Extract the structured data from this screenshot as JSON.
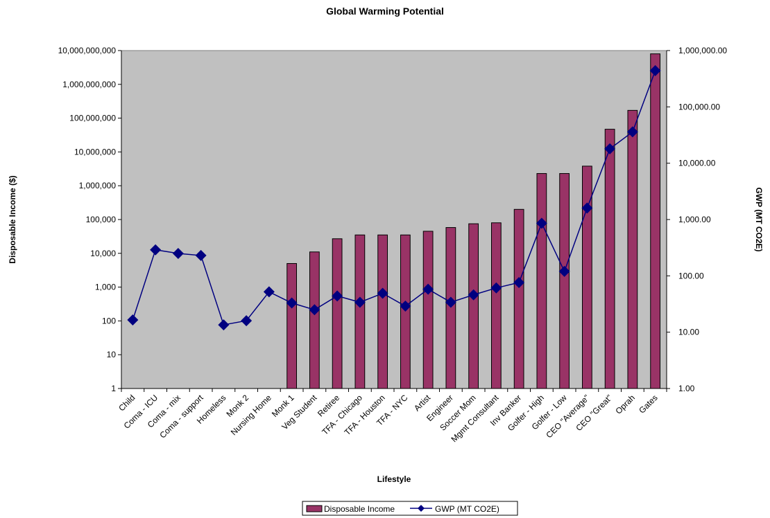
{
  "chart_data": {
    "type": "bar",
    "title": "Global Warming Potential",
    "xlabel": "Lifestyle",
    "ylabel": "Disposable Income ($)",
    "y2label": "GWP (MT CO2E)",
    "y_scale": "log",
    "y2_scale": "log",
    "ylim": [
      1,
      10000000000
    ],
    "y2lim": [
      1,
      1000000
    ],
    "y_ticks": [
      "1",
      "10",
      "100",
      "1,000",
      "10,000",
      "100,000",
      "1,000,000",
      "10,000,000",
      "100,000,000",
      "1,000,000,000",
      "10,000,000,000"
    ],
    "y2_ticks": [
      "1.00",
      "10.00",
      "100.00",
      "1,000.00",
      "10,000.00",
      "100,000.00",
      "1,000,000.00"
    ],
    "plot_background": "#c0c0c0",
    "categories": [
      "Child",
      "Coma - ICU",
      "Coma - mix",
      "Coma - support",
      "Homeless",
      "Monk 2",
      "Nursing Home",
      "Monk 1",
      "Veg Student",
      "Retiree",
      "TFA - Chicago",
      "TFA - Houston",
      "TFA - NYC",
      "Artist",
      "Engineer",
      "Soccer Mom",
      "Mgmt Consultant",
      "Inv Banker",
      "Golfer - High",
      "Golfer - Low",
      "CEO \"Average\"",
      "CEO \"Great\"",
      "Oprah",
      "Gates"
    ],
    "series": [
      {
        "name": "Disposable Income",
        "kind": "bar",
        "axis": "left",
        "color": "#993366",
        "values": [
          null,
          null,
          null,
          null,
          null,
          null,
          null,
          5000,
          11000,
          27000,
          35000,
          35000,
          35000,
          45000,
          58000,
          75000,
          80000,
          200000,
          2300000,
          2300000,
          3800000,
          47000000,
          170000000,
          8000000000
        ]
      },
      {
        "name": "GWP (MT CO2E)",
        "kind": "line",
        "axis": "right",
        "color": "#000080",
        "values": [
          16.5,
          290,
          250,
          230,
          13.5,
          16,
          52,
          33,
          25,
          44,
          34,
          49,
          29,
          58,
          34,
          46,
          61,
          76,
          860,
          120,
          1600,
          18000,
          36000,
          440000
        ]
      }
    ],
    "legend_position": "bottom"
  }
}
